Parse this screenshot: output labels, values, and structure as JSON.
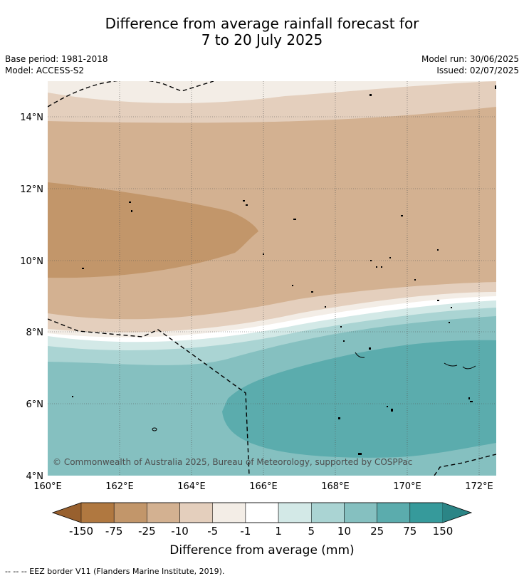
{
  "title": {
    "line1": "Difference from average rainfall forecast for",
    "line2": "7 to 20 July 2025"
  },
  "meta_left": {
    "base_period": "Base period: 1981-2018",
    "model": "Model: ACCESS-S2"
  },
  "meta_right": {
    "model_run": "Model run: 30/06/2025",
    "issued": "Issued: 02/07/2025"
  },
  "map": {
    "lat_labels": [
      "14°N",
      "12°N",
      "10°N",
      "8°N",
      "6°N",
      "4°N"
    ],
    "lon_labels": [
      "160°E",
      "162°E",
      "164°E",
      "166°E",
      "168°E",
      "170°E",
      "172°E"
    ],
    "copyright": "© Commonwealth of Australia 2025, Bureau of Meteorology, supported by COSPPac",
    "lat_range": [
      4,
      15
    ],
    "lon_range": [
      160,
      172.5
    ]
  },
  "colorbar": {
    "ticks": [
      "-150",
      "-75",
      "-25",
      "-10",
      "-5",
      "-1",
      "1",
      "5",
      "10",
      "25",
      "75",
      "150"
    ],
    "colors": [
      "#b07840",
      "#c2966a",
      "#d3b191",
      "#e4cfbd",
      "#f3ede6",
      "#ffffff",
      "#d3e9e7",
      "#aad4d3",
      "#85c0c0",
      "#5bacad",
      "#369a9b"
    ],
    "low_extend_color": "#98602e",
    "high_extend_color": "#2b8586",
    "label": "Difference from average (mm)"
  },
  "footer": {
    "legend_text": "--  --  -- EEZ border V11 (Flanders Marine Institute, 2019)."
  }
}
